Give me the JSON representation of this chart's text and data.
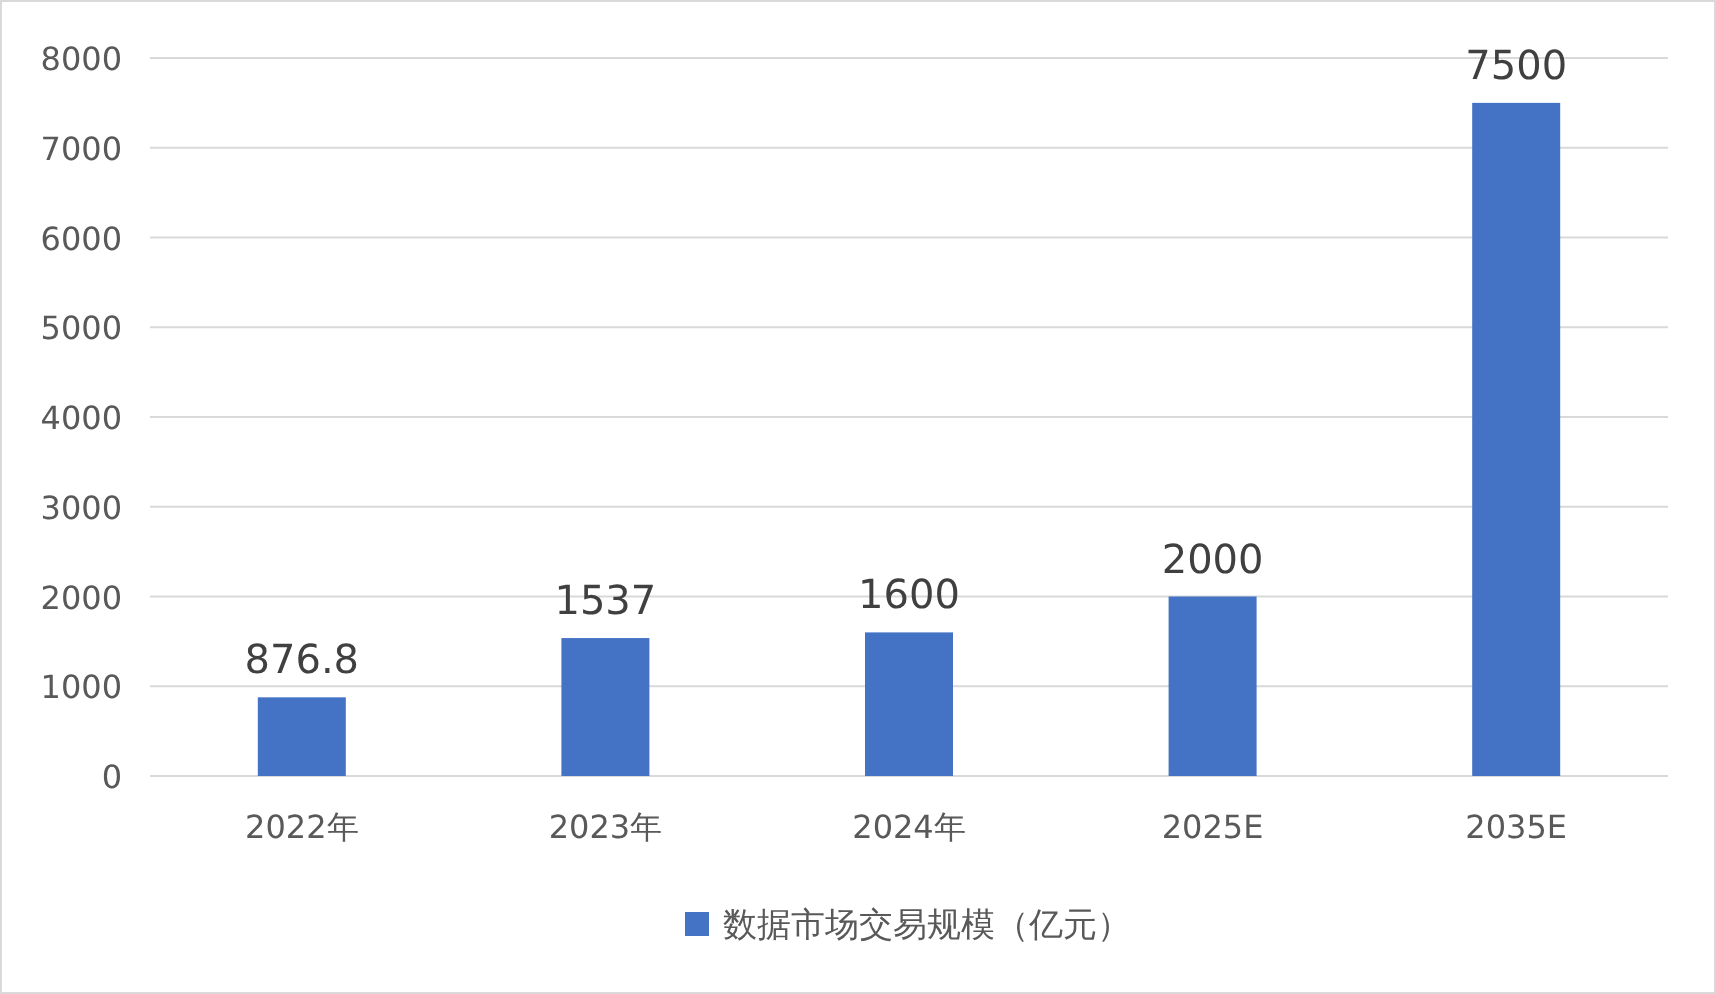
{
  "chart_data": {
    "type": "bar",
    "categories": [
      "2022年",
      "2023年",
      "2024年",
      "2025E",
      "2035E"
    ],
    "series": [
      {
        "name": "数据市场交易规模（亿元）",
        "color": "#4472c4",
        "values": [
          876.8,
          1537,
          1600,
          2000,
          7500
        ]
      }
    ],
    "ylim": [
      0,
      8000
    ],
    "yticks": [
      0,
      1000,
      2000,
      3000,
      4000,
      5000,
      6000,
      7000,
      8000
    ],
    "grid": "y",
    "legend": "bottom",
    "data_labels": true
  }
}
